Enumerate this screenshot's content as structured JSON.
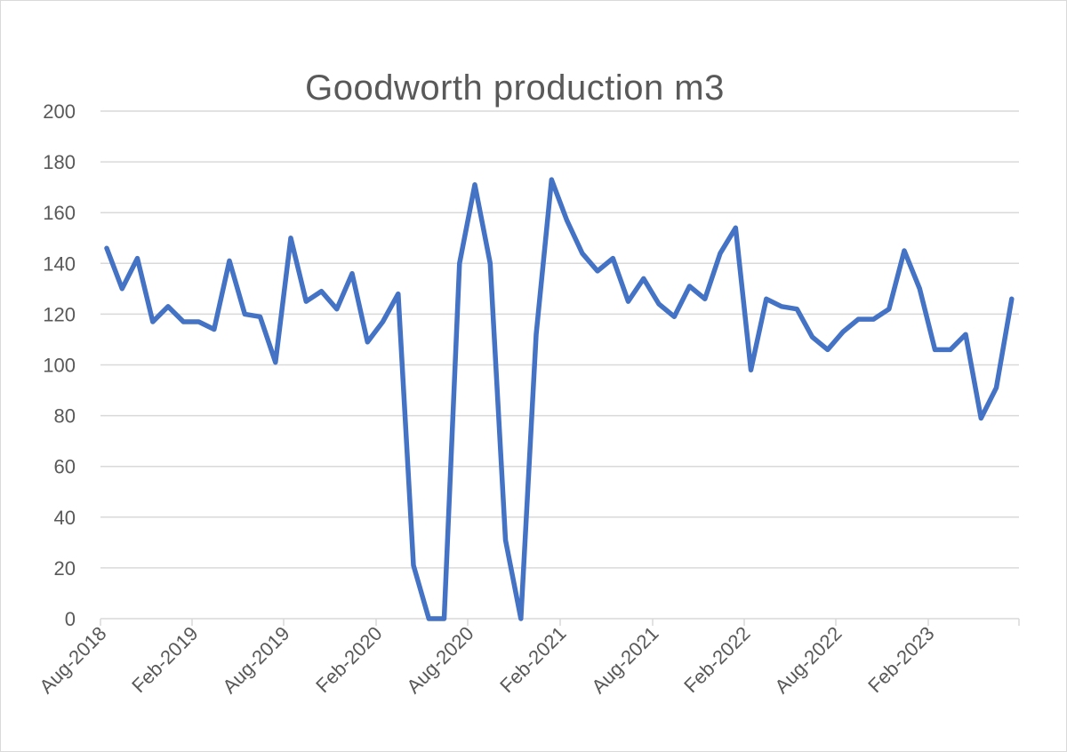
{
  "chart_data": {
    "type": "line",
    "title": "Goodworth production m3",
    "xlabel": "",
    "ylabel": "",
    "ylim": [
      0,
      200
    ],
    "yticks": [
      "0",
      "20",
      "40",
      "60",
      "80",
      "100",
      "120",
      "140",
      "160",
      "180",
      "200"
    ],
    "grid": true,
    "legend": "none",
    "x_tick_labels": [
      {
        "index": 0,
        "label": "Aug-2018"
      },
      {
        "index": 6,
        "label": "Feb-2019"
      },
      {
        "index": 12,
        "label": "Aug-2019"
      },
      {
        "index": 18,
        "label": "Feb-2020"
      },
      {
        "index": 24,
        "label": "Aug-2020"
      },
      {
        "index": 30,
        "label": "Feb-2021"
      },
      {
        "index": 36,
        "label": "Aug-2021"
      },
      {
        "index": 42,
        "label": "Feb-2022"
      },
      {
        "index": 48,
        "label": "Aug-2022"
      },
      {
        "index": 54,
        "label": "Feb-2023"
      }
    ],
    "series": [
      {
        "color": "#4472c4",
        "values": [
          146,
          130,
          142,
          117,
          123,
          117,
          117,
          114,
          141,
          120,
          119,
          101,
          150,
          125,
          129,
          122,
          136,
          109,
          117,
          128,
          21,
          0,
          0,
          140,
          171,
          140,
          31,
          0,
          112,
          173,
          157,
          144,
          137,
          142,
          125,
          134,
          124,
          119,
          131,
          126,
          144,
          154,
          98,
          126,
          123,
          122,
          111,
          106,
          113,
          118,
          118,
          122,
          145,
          130,
          106,
          106,
          112,
          79,
          91,
          126
        ]
      }
    ]
  }
}
